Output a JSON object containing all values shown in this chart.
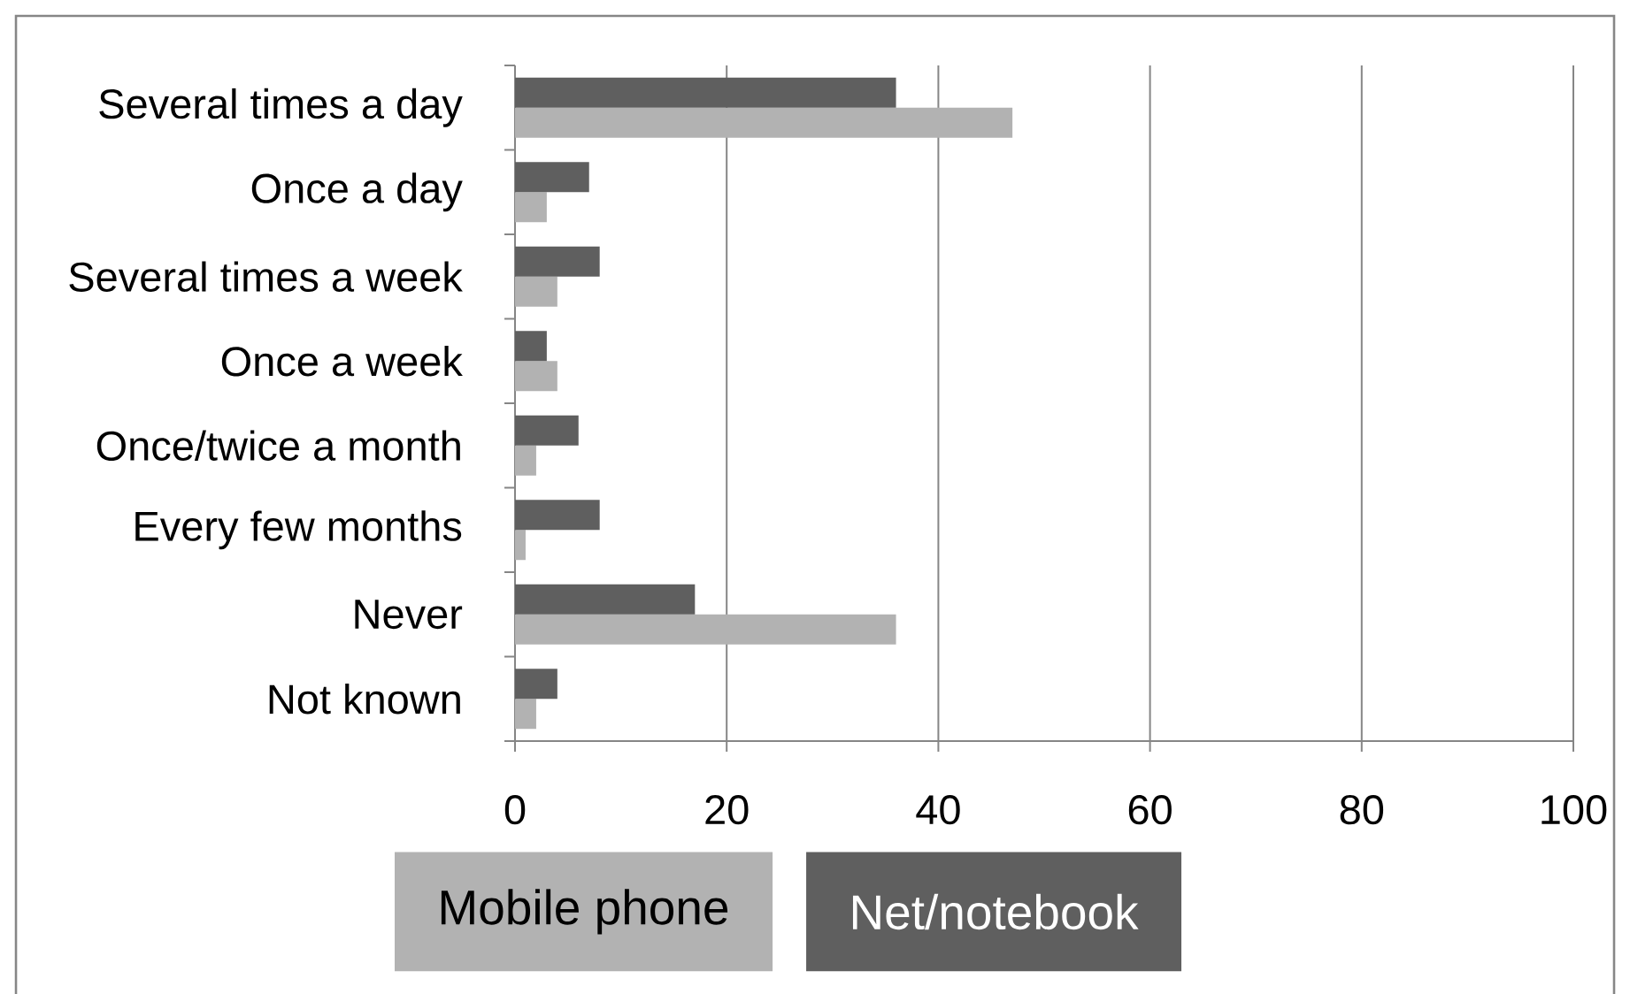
{
  "chart_data": {
    "type": "bar",
    "orientation": "horizontal",
    "categories": [
      "Several times a day",
      "Once a day",
      "Several times a week",
      "Once a week",
      "Once/twice a month",
      "Every few months",
      "Never",
      "Not known"
    ],
    "series": [
      {
        "name": "Mobile phone",
        "color": "#b2b2b2",
        "values": [
          47,
          3,
          4,
          4,
          2,
          1,
          36,
          2
        ]
      },
      {
        "name": "Net/notebook",
        "color": "#5f5f5f",
        "values": [
          36,
          7,
          8,
          3,
          6,
          8,
          17,
          4
        ]
      }
    ],
    "xlim": [
      0,
      100
    ],
    "xticks": [
      0,
      20,
      40,
      60,
      80,
      100
    ],
    "grid": "x",
    "legend": "bottom"
  }
}
